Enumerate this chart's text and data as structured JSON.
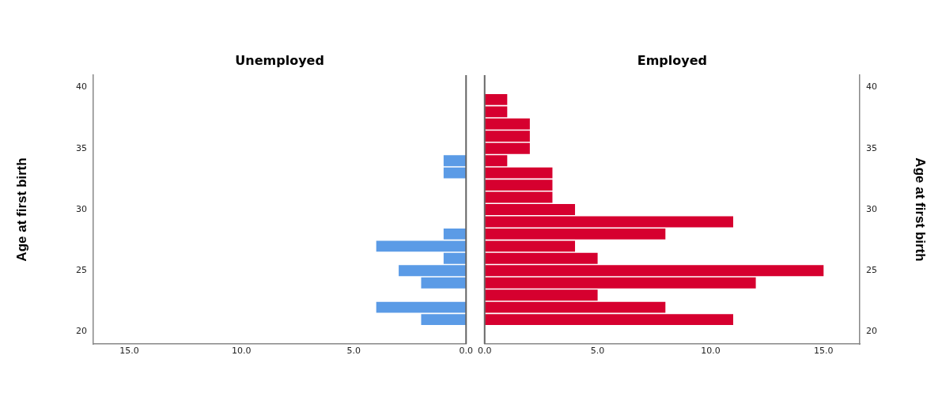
{
  "chart_data": [
    {
      "type": "histogram",
      "orientation": "horizontal",
      "title": "Unemployed",
      "ylabel": "Age at first birth",
      "bins": [
        20.5,
        21.5,
        22.5,
        23.5,
        24.5,
        25.5,
        26.5,
        27.5,
        28.5,
        29.5,
        30.5,
        31.5,
        32.5,
        33.5,
        34.5,
        35.5,
        36.5,
        37.5,
        38.5,
        39.5
      ],
      "series": [
        {
          "color": "#5b9be6",
          "values": [
            2,
            4,
            0,
            2,
            3,
            1,
            4,
            1,
            0,
            0,
            0,
            0,
            1,
            1,
            0,
            0,
            0,
            0,
            0
          ]
        }
      ],
      "xlim": [
        16.6,
        0
      ],
      "xticks": [
        {
          "value": 15,
          "label": "15.0"
        },
        {
          "value": 10,
          "label": "10.0"
        },
        {
          "value": 5,
          "label": "5.0"
        },
        {
          "value": 0,
          "label": "0.0"
        }
      ],
      "ylim": [
        19,
        41
      ],
      "yticks": [
        20,
        25,
        30,
        35,
        40
      ],
      "grid": false,
      "legend": false
    },
    {
      "type": "histogram",
      "orientation": "horizontal",
      "title": "Employed",
      "ylabel": "Age at first birth",
      "bins": [
        20.5,
        21.5,
        22.5,
        23.5,
        24.5,
        25.5,
        26.5,
        27.5,
        28.5,
        29.5,
        30.5,
        31.5,
        32.5,
        33.5,
        34.5,
        35.5,
        36.5,
        37.5,
        38.5,
        39.5
      ],
      "series": [
        {
          "color": "#d6002f",
          "values": [
            11,
            8,
            5,
            12,
            15,
            5,
            4,
            8,
            11,
            4,
            3,
            3,
            3,
            1,
            2,
            2,
            2,
            1,
            1
          ]
        }
      ],
      "xlim": [
        0,
        16.6
      ],
      "xticks": [
        {
          "value": 0,
          "label": "0.0"
        },
        {
          "value": 5,
          "label": "5.0"
        },
        {
          "value": 10,
          "label": "10.0"
        },
        {
          "value": 15,
          "label": "15.0"
        }
      ],
      "ylim": [
        19,
        41
      ],
      "yticks": [
        20,
        25,
        30,
        35,
        40
      ],
      "grid": false,
      "legend": false
    }
  ]
}
